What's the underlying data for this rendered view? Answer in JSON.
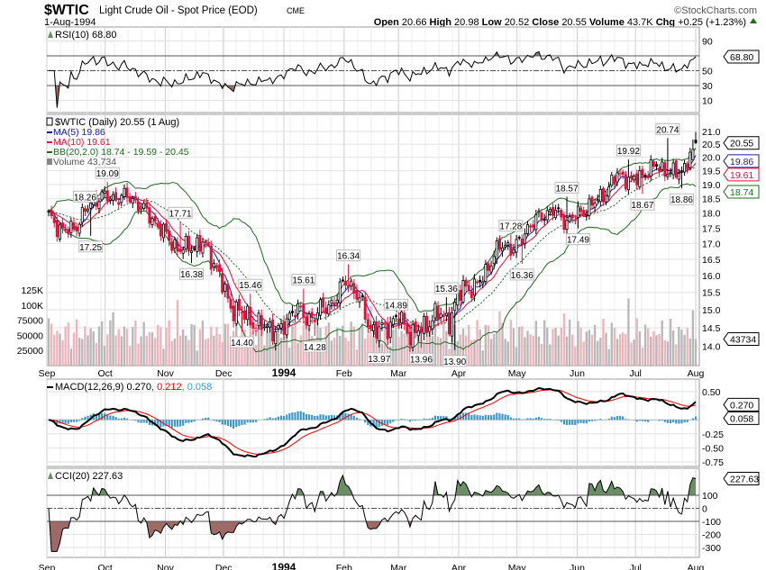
{
  "header": {
    "symbol": "$WTIC",
    "name": "Light Crude Oil - Spot Price (EOD)",
    "exchange": "CME",
    "date": "1-Aug-1994",
    "brand": "©StockCharts.com",
    "open_label": "Open",
    "open": "20.66",
    "high_label": "High",
    "high": "20.98",
    "low_label": "Low",
    "low": "20.52",
    "close_label": "Close",
    "close": "20.55",
    "volume_label": "Volume",
    "volume": "43.7K",
    "chg_label": "Chg",
    "chg": "+0.25 (+1.23%)"
  },
  "colors": {
    "up": "#000000",
    "down": "#e0103a",
    "ma5": "#1a1aa0",
    "ma10": "#e0103a",
    "bb": "#1e6b1e",
    "vol_up": "#b9b9b9",
    "vol_down": "#efb5bd",
    "macd": "#000000",
    "signal": "#ff0000",
    "hist": "#3d98c8",
    "fill_over": "#6b8e66",
    "fill_under": "#9e6a66",
    "grid": "#e2e2e2"
  },
  "chart_data": [
    {
      "type": "line",
      "title": "RSI(10) 68.80",
      "legend": "RSI(10) 68.80",
      "ylim": [
        0,
        100
      ],
      "yticks": [
        "90",
        "50",
        "30",
        "10"
      ],
      "levels": [
        70,
        50,
        30
      ],
      "last_value": "68.80"
    },
    {
      "type": "candlestick",
      "scale": "log",
      "legend": {
        "price": "$WTIC (Daily) 20.55 (1 Aug)",
        "ma5": "MA(5) 19.86",
        "ma10": "MA(10) 19.61",
        "bb": "BB(20,2.0) 18.74 - 19.59 - 20.45",
        "volume": "Volume 43,734"
      },
      "ylim": [
        13.5,
        21.3
      ],
      "yticks": [
        "21.0",
        "20.5",
        "20.0",
        "19.5",
        "19.0",
        "18.5",
        "18.0",
        "17.5",
        "17.0",
        "16.5",
        "16.0",
        "15.5",
        "15.0",
        "14.5",
        "14.0"
      ],
      "volume_ticks": [
        "125K",
        "100K",
        "75000",
        "50000",
        "25000"
      ],
      "volume_tick_values": [
        125000,
        100000,
        75000,
        50000,
        25000
      ],
      "xticks": [
        {
          "label": "Sep",
          "date": "1993-09-01"
        },
        {
          "label": "Oct",
          "date": "1993-10-01"
        },
        {
          "label": "Nov",
          "date": "1993-11-01"
        },
        {
          "label": "Dec",
          "date": "1993-12-01"
        },
        {
          "label": "1994",
          "date": "1994-01-01",
          "bold": true
        },
        {
          "label": "Feb",
          "date": "1994-02-01"
        },
        {
          "label": "Mar",
          "date": "1994-03-01"
        },
        {
          "label": "Apr",
          "date": "1994-04-01"
        },
        {
          "label": "May",
          "date": "1994-05-01"
        },
        {
          "label": "Jun",
          "date": "1994-06-01"
        },
        {
          "label": "Jul",
          "date": "1994-07-01"
        },
        {
          "label": "Aug",
          "date": "1994-08-01"
        }
      ],
      "x_range": [
        "1993-09-01",
        "1994-08-01"
      ],
      "weekly_close": [
        17.9,
        17.4,
        17.5,
        18.2,
        18.6,
        18.5,
        18.6,
        18.3,
        17.8,
        17.3,
        16.8,
        16.9,
        17.0,
        16.2,
        15.1,
        14.9,
        14.6,
        14.5,
        14.4,
        15.1,
        14.7,
        15.0,
        15.2,
        15.9,
        15.3,
        14.4,
        14.5,
        14.8,
        14.3,
        14.5,
        14.9,
        14.7,
        15.7,
        15.6,
        16.3,
        17.0,
        16.8,
        17.5,
        17.9,
        18.1,
        17.7,
        18.0,
        18.3,
        18.7,
        19.4,
        19.1,
        19.4,
        19.7,
        19.4,
        19.5,
        20.55
      ],
      "last_bar": {
        "open": 20.66,
        "high": 20.98,
        "low": 20.52,
        "close": 20.55,
        "volume": 43734
      },
      "annotations": [
        {
          "text": "18.26",
          "value": 18.26,
          "date": "1993-09-20",
          "type": "high"
        },
        {
          "text": "19.09",
          "value": 19.09,
          "date": "1993-10-01",
          "type": "high"
        },
        {
          "text": "17.25",
          "value": 17.25,
          "date": "1993-09-23",
          "type": "low"
        },
        {
          "text": "17.71",
          "value": 17.71,
          "date": "1993-11-08",
          "type": "high"
        },
        {
          "text": "16.38",
          "value": 16.38,
          "date": "1993-11-14",
          "type": "low"
        },
        {
          "text": "15.46",
          "value": 15.46,
          "date": "1993-12-14",
          "type": "high"
        },
        {
          "text": "14.40",
          "value": 14.4,
          "date": "1993-12-10",
          "type": "low"
        },
        {
          "text": "15.61",
          "value": 15.61,
          "date": "1994-01-10",
          "type": "high"
        },
        {
          "text": "14.28",
          "value": 14.28,
          "date": "1994-01-17",
          "type": "low"
        },
        {
          "text": "16.34",
          "value": 16.34,
          "date": "1994-02-03",
          "type": "high"
        },
        {
          "text": "13.97",
          "value": 13.97,
          "date": "1994-02-18",
          "type": "low"
        },
        {
          "text": "14.89",
          "value": 14.89,
          "date": "1994-02-28",
          "type": "high"
        },
        {
          "text": "13.96",
          "value": 13.96,
          "date": "1994-03-12",
          "type": "low"
        },
        {
          "text": "15.36",
          "value": 15.36,
          "date": "1994-03-26",
          "type": "high"
        },
        {
          "text": "13.90",
          "value": 13.9,
          "date": "1994-03-30",
          "type": "low"
        },
        {
          "text": "17.28",
          "value": 17.28,
          "date": "1994-04-28",
          "type": "high"
        },
        {
          "text": "16.36",
          "value": 16.36,
          "date": "1994-05-03",
          "type": "low"
        },
        {
          "text": "18.57",
          "value": 18.57,
          "date": "1994-05-27",
          "type": "high"
        },
        {
          "text": "17.49",
          "value": 17.49,
          "date": "1994-06-01",
          "type": "low"
        },
        {
          "text": "19.92",
          "value": 19.92,
          "date": "1994-06-27",
          "type": "high"
        },
        {
          "text": "18.67",
          "value": 18.67,
          "date": "1994-07-04",
          "type": "low"
        },
        {
          "text": "20.74",
          "value": 20.74,
          "date": "1994-07-17",
          "type": "high"
        },
        {
          "text": "18.86",
          "value": 18.86,
          "date": "1994-07-25",
          "type": "low"
        }
      ],
      "value_tags": [
        {
          "text": "20.55",
          "value": 20.55,
          "color": "#000000"
        },
        {
          "text": "19.86",
          "value": 19.86,
          "color": "#1a1aa0"
        },
        {
          "text": "19.61",
          "value": 19.61,
          "color": "#e0103a"
        },
        {
          "text": "18.74",
          "value": 18.74,
          "color": "#1e6b1e"
        }
      ],
      "volume_tag": "43734"
    },
    {
      "type": "line",
      "legend_main": "MACD(12,26,9) 0.270",
      "legend_signal": ", 0.212",
      "legend_hist": ", 0.058",
      "ylim": [
        -0.85,
        0.65
      ],
      "yticks": [
        "0.50",
        "-0.25",
        "-0.50",
        "-0.75"
      ],
      "ytick_values": [
        0.5,
        -0.25,
        -0.5,
        -0.75
      ],
      "tags": [
        {
          "text": "0.270",
          "value": 0.27
        },
        {
          "text": "0.058",
          "value": 0.058
        }
      ]
    },
    {
      "type": "line",
      "legend": "CCI(20) 227.63",
      "ylim": [
        -370,
        300
      ],
      "yticks": [
        "100",
        "0",
        "-100",
        "-200",
        "-300"
      ],
      "ytick_values": [
        100,
        0,
        -100,
        -200,
        -300
      ],
      "levels": [
        100,
        0,
        -100
      ],
      "tag": "227.63"
    }
  ]
}
